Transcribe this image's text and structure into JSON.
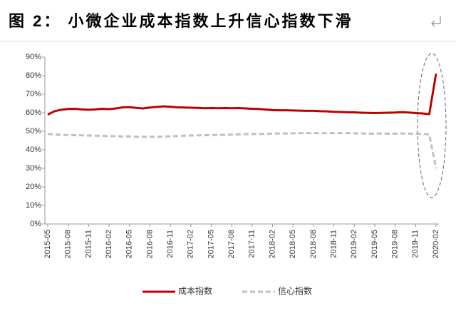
{
  "chart_data": {
    "type": "line",
    "title": "图 2：  小微企业成本指数上升信心指数下滑",
    "categories": [
      "2015-05",
      null,
      null,
      "2015-08",
      null,
      null,
      "2015-11",
      null,
      null,
      "2016-02",
      null,
      null,
      "2016-05",
      null,
      null,
      "2016-08",
      null,
      null,
      "2016-11",
      null,
      null,
      "2017-02",
      null,
      null,
      "2017-05",
      null,
      null,
      "2017-08",
      null,
      null,
      "2017-11",
      null,
      null,
      "2018-02",
      null,
      null,
      "2018-05",
      null,
      null,
      "2018-08",
      null,
      null,
      "2018-11",
      null,
      null,
      "2019-02",
      null,
      null,
      "2019-05",
      null,
      null,
      "2019-08",
      null,
      null,
      "2019-11",
      null,
      null,
      "2020-02"
    ],
    "series": [
      {
        "name": "成本指数",
        "color": "#c00000",
        "dash": false,
        "values": [
          59,
          60.8,
          61.6,
          62,
          62.1,
          61.8,
          61.6,
          61.8,
          62.1,
          61.9,
          62.3,
          62.9,
          63,
          62.6,
          62.3,
          62.8,
          63.1,
          63.4,
          63.2,
          62.9,
          62.8,
          62.7,
          62.6,
          62.4,
          62.5,
          62.4,
          62.5,
          62.4,
          62.5,
          62.3,
          62.1,
          62,
          61.7,
          61.4,
          61.3,
          61.3,
          61.2,
          61.1,
          61,
          61,
          60.8,
          60.7,
          60.5,
          60.4,
          60.2,
          60.2,
          60,
          59.9,
          59.8,
          59.9,
          60,
          60.1,
          60.3,
          60.1,
          59.8,
          59.6,
          59.2,
          81
        ]
      },
      {
        "name": "信心指数",
        "color": "#bfbfbf",
        "dash": true,
        "values": [
          48.5,
          48.3,
          48,
          48,
          47.9,
          47.8,
          47.7,
          47.6,
          47.5,
          47.4,
          47.3,
          47.2,
          47.2,
          47,
          47,
          47,
          47,
          47.1,
          47.3,
          47.4,
          47.6,
          47.7,
          47.8,
          47.9,
          48,
          48,
          48.1,
          48.2,
          48.3,
          48.4,
          48.5,
          48.5,
          48.6,
          48.7,
          48.8,
          48.8,
          48.9,
          49,
          49,
          49,
          49,
          48.9,
          49,
          49,
          49,
          48.9,
          48.8,
          48.7,
          48.7,
          48.8,
          48.7,
          48.7,
          48.8,
          48.7,
          48.7,
          48.6,
          48.3,
          30
        ]
      }
    ],
    "ylim": [
      0,
      90
    ],
    "yticks": [
      {
        "value": 0,
        "label": "0%"
      },
      {
        "value": 10,
        "label": "10%"
      },
      {
        "value": 20,
        "label": "20%"
      },
      {
        "value": 30,
        "label": "30%"
      },
      {
        "value": 40,
        "label": "40%"
      },
      {
        "value": 50,
        "label": "50%"
      },
      {
        "value": 60,
        "label": "60%"
      },
      {
        "value": 70,
        "label": "70%"
      },
      {
        "value": 80,
        "label": "80%"
      },
      {
        "value": 90,
        "label": "90%"
      }
    ],
    "legend": "bottom"
  }
}
